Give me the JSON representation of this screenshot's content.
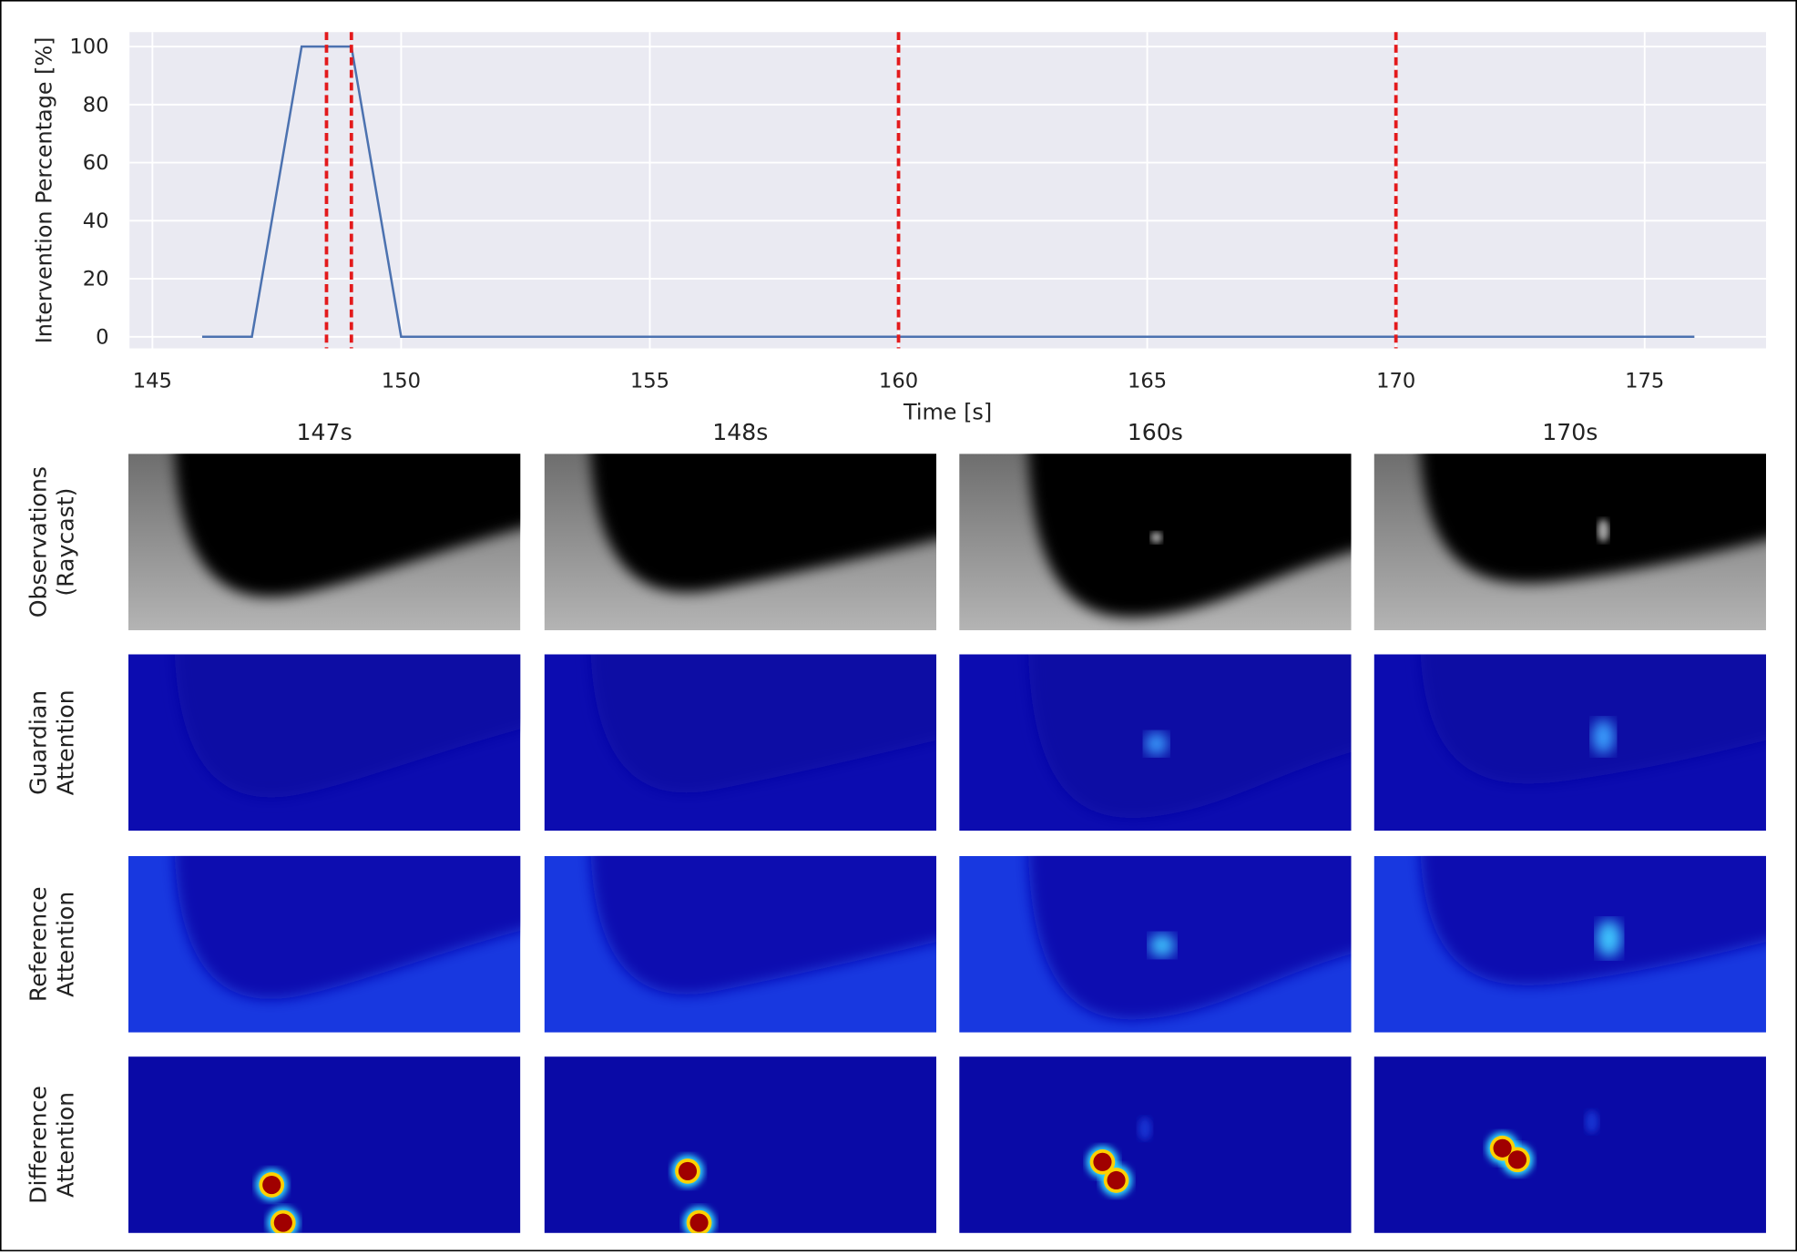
{
  "chart_data": {
    "type": "line",
    "xlabel": "Time [s]",
    "ylabel": "Intervention Percentage [%]",
    "x": [
      146,
      147,
      148,
      149,
      150,
      176
    ],
    "values": [
      0,
      0,
      100,
      100,
      0,
      0
    ],
    "color": "#4c72b0",
    "xlim": [
      144.54,
      177.44
    ],
    "ylim": [
      -4,
      105
    ],
    "xticks": [
      145,
      150,
      155,
      160,
      165,
      170,
      175
    ],
    "yticks": [
      0,
      20,
      40,
      60,
      80,
      100
    ],
    "grid": true,
    "vlines": {
      "x": [
        148.5,
        149,
        160,
        170
      ],
      "color": "#e31a1c"
    }
  },
  "image_grid": {
    "columns": [
      "147s",
      "148s",
      "160s",
      "170s"
    ],
    "rows": [
      [
        "Observations",
        "(Raycast)"
      ],
      [
        "Guardian",
        "Attention"
      ],
      [
        "Reference",
        "Attention"
      ],
      [
        "Difference",
        "Attention"
      ]
    ]
  }
}
